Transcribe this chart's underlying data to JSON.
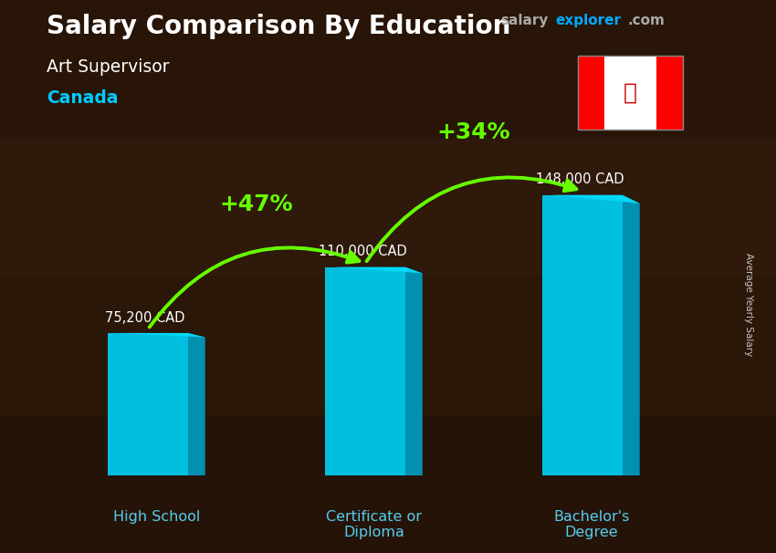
{
  "title": "Salary Comparison By Education",
  "subtitle": "Art Supervisor",
  "country": "Canada",
  "categories": [
    "High School",
    "Certificate or\nDiploma",
    "Bachelor's\nDegree"
  ],
  "values": [
    75200,
    110000,
    148000
  ],
  "value_labels": [
    "75,200 CAD",
    "110,000 CAD",
    "148,000 CAD"
  ],
  "pct_labels": [
    "+47%",
    "+34%"
  ],
  "bar_face_color": "#00bfdf",
  "bar_side_color": "#0090b0",
  "bar_top_color": "#00d8f8",
  "bg_color": "#2a1a0a",
  "title_color": "#ffffff",
  "subtitle_color": "#ffffff",
  "country_color": "#00ccff",
  "value_label_color": "#ffffff",
  "cat_label_color": "#55ccee",
  "arrow_color": "#66ff00",
  "pct_color": "#66ff00",
  "site_salary_color": "#aaaaaa",
  "site_explorer_color": "#00aaff",
  "site_com_color": "#aaaaaa",
  "ylabel": "Average Yearly Salary",
  "bar_width": 0.55,
  "bar_depth": 0.12,
  "x_positions": [
    1.0,
    2.5,
    4.0
  ],
  "ylim": [
    0,
    175000
  ],
  "xlim": [
    0.3,
    4.8
  ]
}
